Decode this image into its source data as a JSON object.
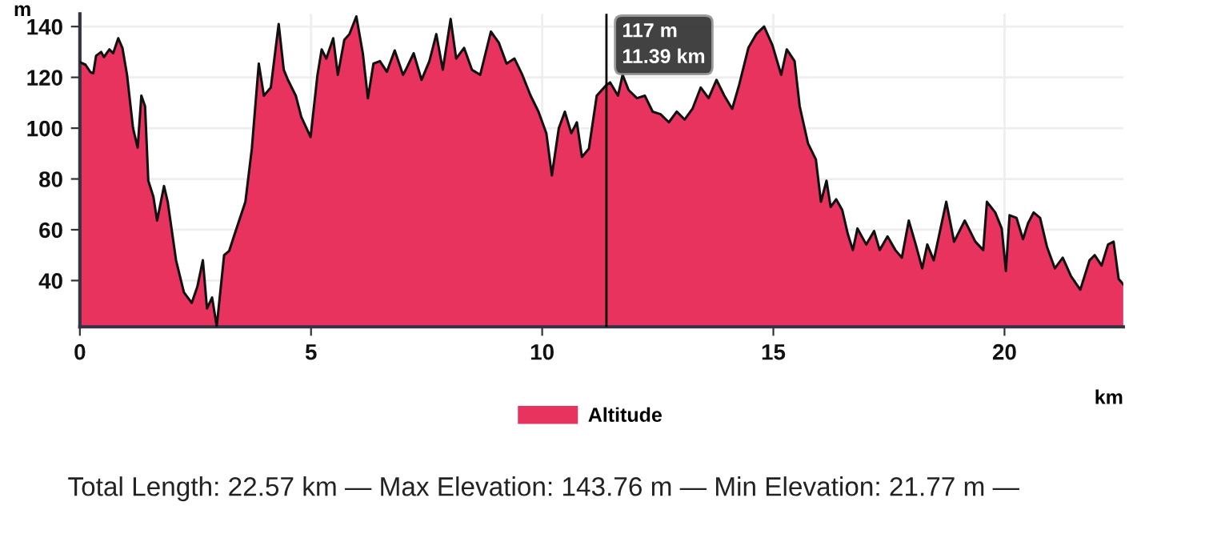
{
  "chart_data": {
    "type": "area",
    "xlabel": "km",
    "ylabel": "m",
    "x": [
      0,
      0.12,
      0.23,
      0.29,
      0.35,
      0.46,
      0.52,
      0.64,
      0.72,
      0.83,
      0.92,
      1.02,
      1.15,
      1.25,
      1.33,
      1.41,
      1.48,
      1.59,
      1.67,
      1.82,
      1.9,
      2.08,
      2.25,
      2.42,
      2.54,
      2.66,
      2.75,
      2.86,
      2.96,
      3.12,
      3.23,
      3.35,
      3.58,
      3.72,
      3.87,
      3.98,
      4.13,
      4.3,
      4.41,
      4.5,
      4.67,
      4.79,
      4.99,
      5.14,
      5.23,
      5.33,
      5.48,
      5.58,
      5.72,
      5.83,
      5.98,
      6.12,
      6.23,
      6.35,
      6.49,
      6.64,
      6.81,
      6.99,
      7.05,
      7.22,
      7.39,
      7.56,
      7.71,
      7.85,
      8.02,
      8.14,
      8.31,
      8.48,
      8.66,
      8.89,
      9.06,
      9.23,
      9.4,
      9.57,
      9.75,
      9.92,
      10.09,
      10.21,
      10.36,
      10.49,
      10.63,
      10.75,
      10.86,
      11.01,
      11.18,
      11.39,
      11.47,
      11.64,
      11.74,
      11.87,
      12.05,
      12.22,
      12.39,
      12.56,
      12.74,
      12.91,
      13.08,
      13.25,
      13.43,
      13.6,
      13.77,
      13.94,
      14.11,
      14.26,
      14.46,
      14.63,
      14.8,
      14.98,
      15.17,
      15.29,
      15.46,
      15.57,
      15.75,
      15.92,
      16.03,
      16.15,
      16.24,
      16.36,
      16.49,
      16.61,
      16.72,
      16.82,
      17.01,
      17.18,
      17.3,
      17.47,
      17.64,
      17.78,
      17.93,
      18.08,
      18.22,
      18.33,
      18.47,
      18.74,
      18.91,
      19.14,
      19.37,
      19.54,
      19.62,
      19.8,
      19.94,
      20.03,
      20.11,
      20.26,
      20.4,
      20.51,
      20.63,
      20.77,
      20.92,
      21.09,
      21.26,
      21.44,
      21.64,
      21.84,
      21.95,
      22.1,
      22.24,
      22.36,
      22.47,
      22.57
    ],
    "series": [
      {
        "name": "Altitude",
        "color": "#e8335f",
        "values": [
          126,
          125,
          122,
          121.6,
          128.5,
          130,
          128,
          131,
          129.5,
          135.4,
          131.6,
          121,
          100,
          92.3,
          112.8,
          108.6,
          79.3,
          73,
          63.6,
          77.2,
          71,
          48,
          35.4,
          31.2,
          37.5,
          48,
          29,
          33.3,
          22,
          50,
          51.7,
          58.4,
          71,
          92,
          125.4,
          112.8,
          116,
          141,
          123,
          119,
          112.8,
          104.4,
          96.5,
          121,
          131,
          127.4,
          135.4,
          121,
          134.8,
          137,
          144,
          129.5,
          111.8,
          125.4,
          126.4,
          122.2,
          130.6,
          121,
          123,
          129.5,
          119,
          126.4,
          137,
          123,
          143,
          127.4,
          131.6,
          123,
          121,
          138,
          133.7,
          125.4,
          127.4,
          121,
          112.8,
          106.5,
          98,
          81.4,
          100,
          106.5,
          98,
          102.3,
          88.7,
          91.9,
          112.8,
          117,
          118,
          112.8,
          121,
          115,
          111.8,
          112.8,
          106.5,
          105.5,
          102.3,
          106.5,
          103.4,
          107.6,
          116,
          111.8,
          119,
          112.8,
          107.6,
          117,
          131.6,
          137,
          140,
          132.7,
          121,
          131,
          126.4,
          108.6,
          94,
          87.7,
          71,
          79.3,
          69,
          72,
          67.8,
          58.4,
          52,
          60.5,
          54.2,
          59.5,
          52,
          57.4,
          52,
          49,
          63.6,
          54.2,
          44.8,
          54.2,
          48,
          71,
          55.3,
          63.6,
          55.3,
          52,
          71,
          66.8,
          60.5,
          43.8,
          65.7,
          64.7,
          56.3,
          62.6,
          66.8,
          64.7,
          53.2,
          44.8,
          49,
          41.7,
          36.4,
          48,
          50,
          45.9,
          54.2,
          55.3,
          40.6,
          38.5
        ]
      }
    ],
    "xlim": [
      0,
      22.57
    ],
    "ylim": [
      21.77,
      145
    ],
    "xticks": [
      0,
      5,
      10,
      15,
      20
    ],
    "yticks": [
      40,
      60,
      80,
      100,
      120,
      140
    ],
    "grid": true,
    "legend": "bottom",
    "ref_lines": [
      {
        "axis": "x",
        "value": 11.39,
        "color": "#000000"
      }
    ],
    "annotations": [
      {
        "text": "117 m\n11.39 km",
        "x": 11.39,
        "y": 117
      },
      "Total Length: 22.57 km — Max Elevation: 143.76 m — Min Elevation: 21.77 m —"
    ]
  }
}
